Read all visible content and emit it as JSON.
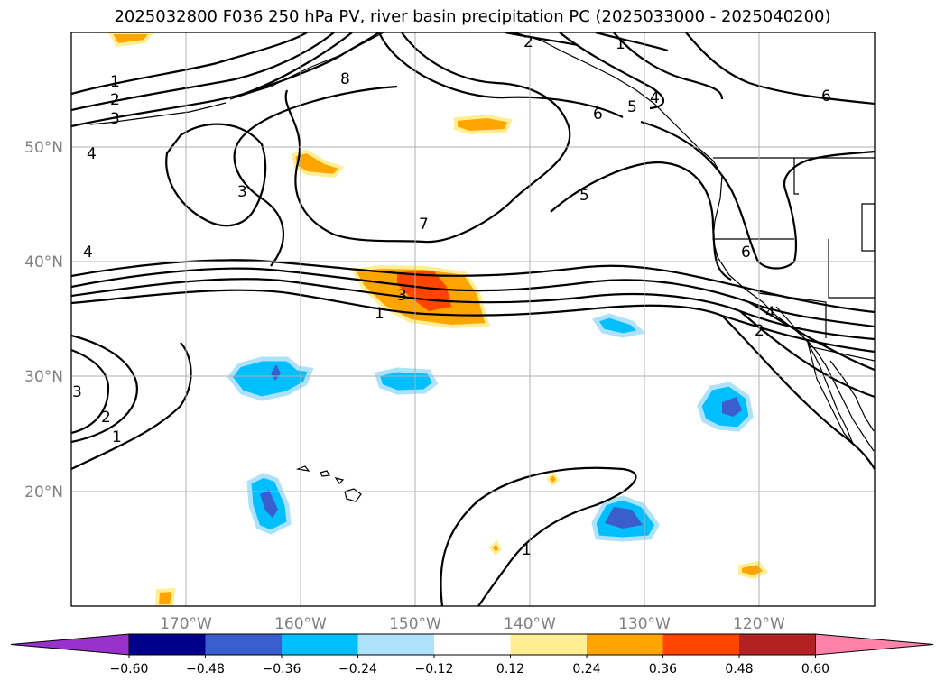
{
  "title": "2025032800 F036 250 hPa PV, river basin precipitation PC (2025033000 - 2025040200)",
  "lon_labels": [
    "170°W",
    "160°W",
    "150°W",
    "140°W",
    "130°W",
    "120°W"
  ],
  "lat_labels": [
    "50°N",
    "40°N",
    "30°N",
    "20°N"
  ],
  "colorbar": {
    "colors": [
      "#9932CC",
      "#00008B",
      "#3A5FCD",
      "#00BFFF",
      "#ADE2FA",
      "#FFFFFF",
      "#FFEE93",
      "#FFA500",
      "#FF4500",
      "#B22222",
      "#FF82AB"
    ],
    "labels": [
      "−0.60",
      "−0.48",
      "−0.36",
      "−0.24",
      "−0.12",
      "0.12",
      "0.24",
      "0.36",
      "0.48",
      "0.60"
    ]
  },
  "contour_labels": {
    "pv_1_north": "1",
    "pv_2_north": "2",
    "pv_3_north": "3",
    "pv_4_west": "4",
    "pv_3_central": "3",
    "pv_7": "7",
    "pv_8": "8",
    "pv_5_east": "5",
    "pv_6_east": "6",
    "pv_6_coast": "6",
    "pv_6_ne": "6",
    "pv_2_top": "2",
    "pv_1_top": "1",
    "pv_4_canada": "4",
    "pv_5_canada": "5",
    "pv_4_west_40": "4",
    "pv_3_jet": "3",
    "pv_1_jet": "1",
    "pv_4_coast": "4",
    "pv_2_coast": "2",
    "pv_3_sw": "3",
    "pv_2_sw": "2",
    "pv_1_sw": "1",
    "pv_1_south": "1"
  }
}
